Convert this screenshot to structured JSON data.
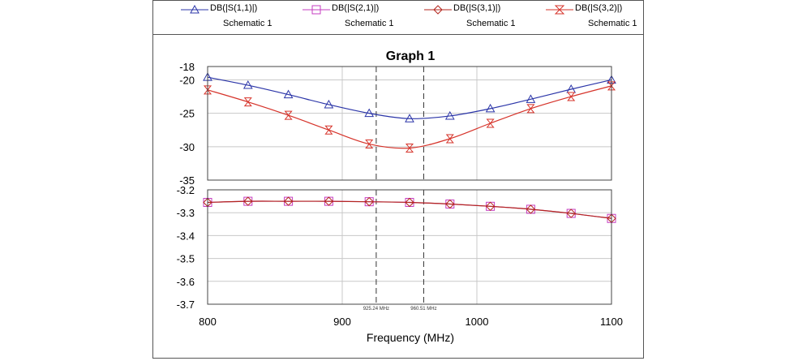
{
  "legend": [
    {
      "name": "DB(|S(1,1)|)",
      "source": "Schematic 1",
      "color": "#2b35a8",
      "marker": "triangle"
    },
    {
      "name": "DB(|S(2,1)|)",
      "source": "Schematic 1",
      "color": "#c53cc0",
      "marker": "square"
    },
    {
      "name": "DB(|S(3,1)|)",
      "source": "Schematic 1",
      "color": "#b3261e",
      "marker": "diamond"
    },
    {
      "name": "DB(|S(3,2)|)",
      "source": "Schematic 1",
      "color": "#d6332a",
      "marker": "hourglass"
    }
  ],
  "chart_data": {
    "type": "line",
    "title": "Graph 1",
    "xlabel": "Frequency (MHz)",
    "xlim": [
      800,
      1100
    ],
    "x_ticks": [
      "800",
      "900",
      "1000",
      "1100"
    ],
    "grid": true,
    "markers": [
      {
        "x": 925.24,
        "label": "925.24 MHz"
      },
      {
        "x": 960.51,
        "label": "960.51 MHz"
      }
    ],
    "panels": [
      {
        "ylim": [
          -35,
          -18
        ],
        "y_ticks": [
          "-18",
          "-20",
          "-25",
          "-30",
          "-35"
        ],
        "series": [
          {
            "name": "DB(|S(1,1)|)",
            "color": "#2b35a8",
            "marker": "triangle",
            "x": [
              800,
              830,
              860,
              890,
              920,
              950,
              980,
              1010,
              1040,
              1070,
              1100
            ],
            "y": [
              -19.6,
              -20.8,
              -22.2,
              -23.7,
              -25.0,
              -25.8,
              -25.4,
              -24.3,
              -22.9,
              -21.4,
              -20.0
            ]
          },
          {
            "name": "DB(|S(3,2)|)",
            "color": "#d6332a",
            "marker": "hourglass",
            "x": [
              800,
              830,
              860,
              890,
              920,
              950,
              980,
              1010,
              1040,
              1070,
              1100
            ],
            "y": [
              -21.5,
              -23.3,
              -25.3,
              -27.5,
              -29.6,
              -30.2,
              -28.8,
              -26.5,
              -24.3,
              -22.5,
              -20.9
            ]
          }
        ]
      },
      {
        "ylim": [
          -3.7,
          -3.2
        ],
        "y_ticks": [
          "-3.2",
          "-3.3",
          "-3.4",
          "-3.5",
          "-3.6",
          "-3.7"
        ],
        "series": [
          {
            "name": "DB(|S(2,1)|)",
            "color": "#c53cc0",
            "marker": "square",
            "x": [
              800,
              830,
              860,
              890,
              920,
              950,
              980,
              1010,
              1040,
              1070,
              1100
            ],
            "y": [
              -3.255,
              -3.25,
              -3.25,
              -3.25,
              -3.252,
              -3.255,
              -3.262,
              -3.272,
              -3.285,
              -3.303,
              -3.325
            ]
          },
          {
            "name": "DB(|S(3,1)|)",
            "color": "#b3261e",
            "marker": "diamond",
            "x": [
              800,
              830,
              860,
              890,
              920,
              950,
              980,
              1010,
              1040,
              1070,
              1100
            ],
            "y": [
              -3.255,
              -3.25,
              -3.25,
              -3.25,
              -3.252,
              -3.255,
              -3.262,
              -3.272,
              -3.285,
              -3.303,
              -3.325
            ]
          }
        ]
      }
    ]
  }
}
